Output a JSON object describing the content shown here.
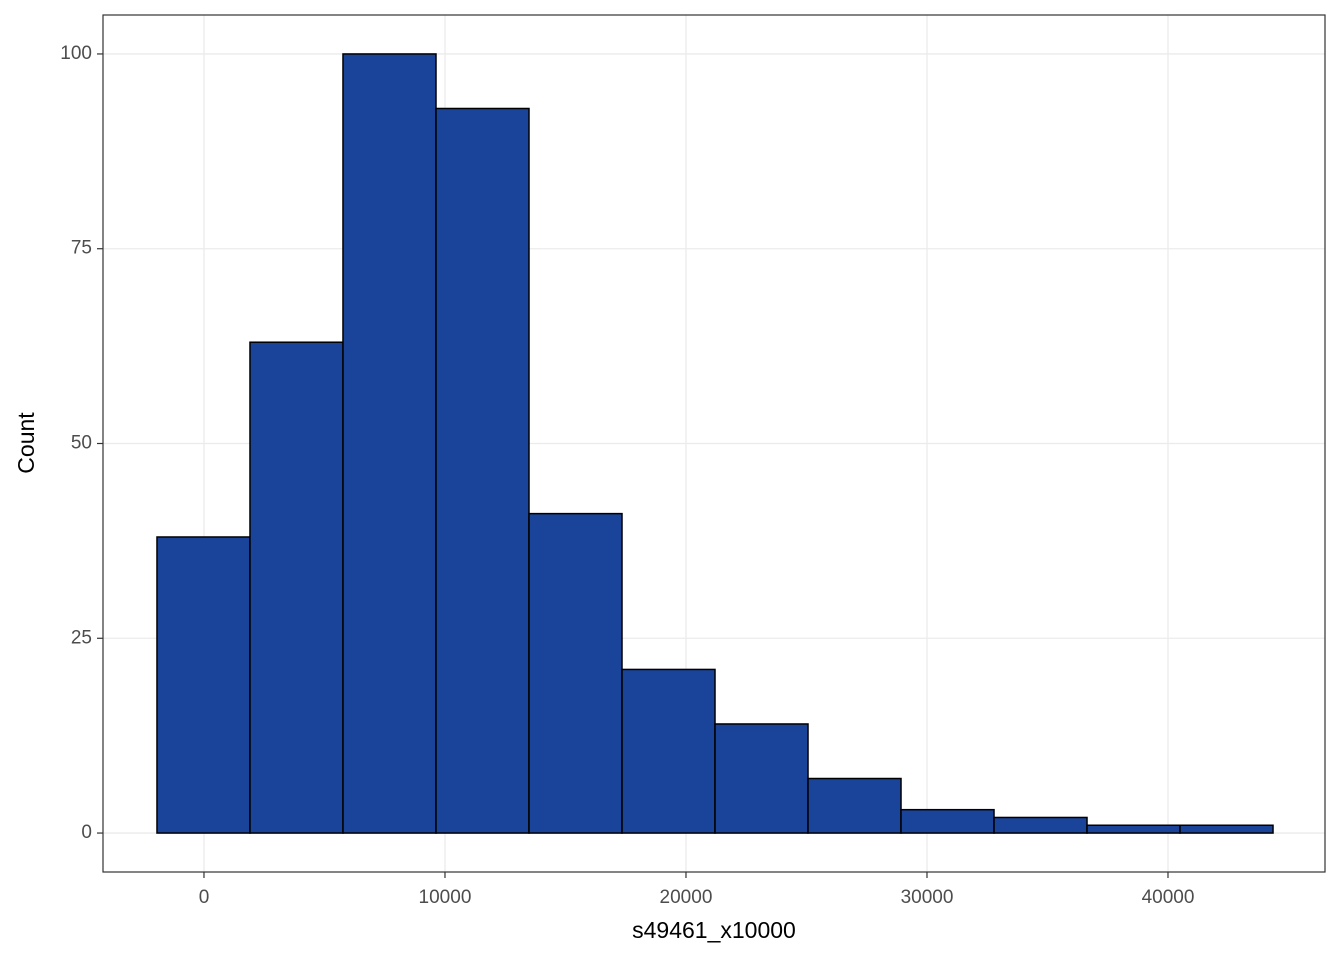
{
  "chart_data": {
    "type": "histogram",
    "x_label": "s49461_x10000",
    "y_label": "Count",
    "bins": [
      -1950,
      1909,
      5768,
      9627,
      13486,
      17345,
      21204,
      25063,
      28922,
      32781,
      36640,
      40499,
      44358
    ],
    "values": [
      38,
      63,
      100,
      93,
      41,
      21,
      14,
      7,
      3,
      2,
      1,
      1
    ],
    "color": "#1a4499",
    "edge_color": "#000000",
    "xlim": [
      -4190,
      46515
    ],
    "xticks": [
      0,
      10000,
      20000,
      30000,
      40000
    ],
    "ylim": [
      -5,
      105
    ],
    "yticks": [
      0,
      25,
      50,
      75,
      100
    ],
    "grid": true
  }
}
